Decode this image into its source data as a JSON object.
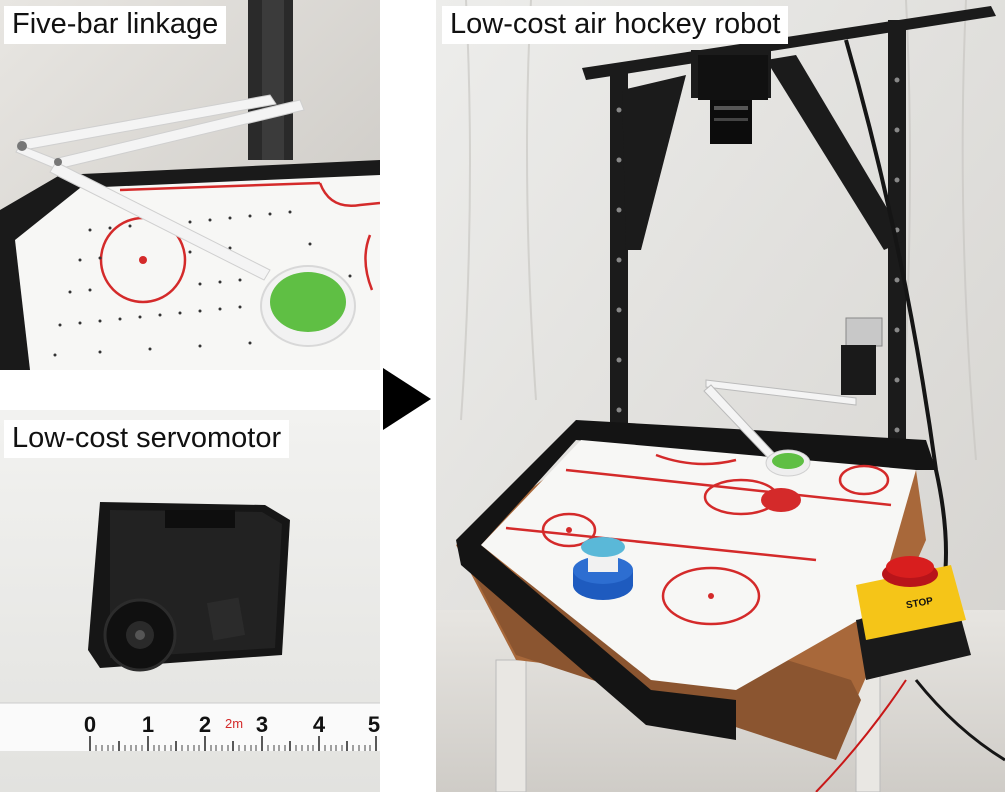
{
  "panels": {
    "five_bar": {
      "caption": "Five-bar linkage"
    },
    "servo": {
      "caption": "Low-cost servomotor",
      "ruler_marks": [
        "0",
        "1",
        "2",
        "3",
        "4",
        "5"
      ],
      "ruler_unit": "2m"
    },
    "robot": {
      "caption": "Low-cost air hockey robot",
      "stop_label": "STOP"
    }
  },
  "colors": {
    "table_line": "#d42a2a",
    "mallet_green": "#5fbf44",
    "puck_blue": "#1e5bbf",
    "cap_cyan": "#5ab8d8",
    "stop_red": "#d81e1e",
    "stop_yellow": "#f5c518",
    "frame_black": "#1b1b1b",
    "wood": "#a8683a"
  },
  "icons": {
    "arrow": "triangle-right-icon"
  }
}
